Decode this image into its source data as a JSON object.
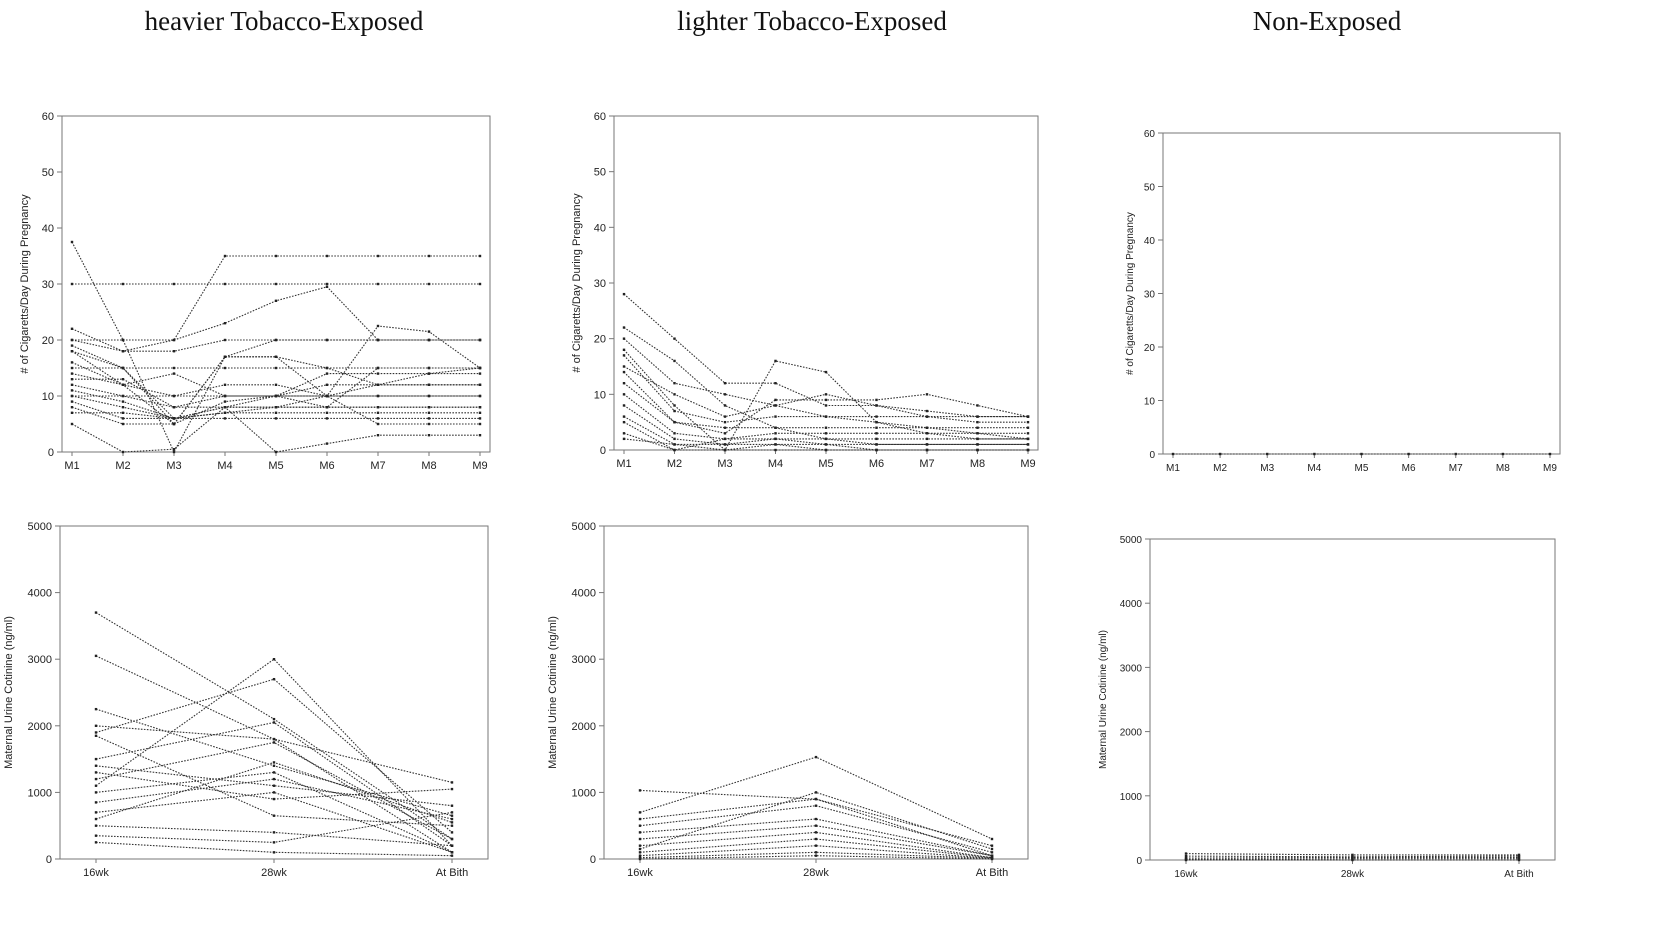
{
  "group_titles": [
    "heavier Tobacco-Exposed",
    "lighter Tobacco-Exposed",
    "Non-Exposed"
  ],
  "colors": {
    "line": "#333333",
    "frame": "#777777",
    "text": "#222222"
  },
  "chart_data": [
    {
      "type": "line",
      "group": "heavier Tobacco-Exposed",
      "ylabel": "# of Cigaretts/Day During Pregnancy",
      "xlabel": "",
      "categories": [
        "M1",
        "M2",
        "M3",
        "M4",
        "M5",
        "M6",
        "M7",
        "M8",
        "M9"
      ],
      "ylim": [
        0,
        60
      ],
      "yticks": [
        0,
        10,
        20,
        30,
        40,
        50,
        60
      ],
      "series": [
        {
          "values": [
            37.5,
            20,
            0,
            17,
            17,
            15,
            12,
            12,
            12
          ]
        },
        {
          "values": [
            30,
            30,
            30,
            30,
            30,
            30,
            30,
            30,
            30
          ]
        },
        {
          "values": [
            20,
            18,
            20,
            35,
            35,
            35,
            35,
            35,
            35
          ]
        },
        {
          "values": [
            20,
            20,
            20,
            23,
            27,
            29.5,
            20,
            20,
            20
          ]
        },
        {
          "values": [
            22,
            18,
            18,
            20,
            20,
            20,
            20,
            20,
            20
          ]
        },
        {
          "values": [
            19,
            15,
            5,
            17,
            17,
            10,
            22.5,
            21.5,
            15
          ]
        },
        {
          "values": [
            18,
            12,
            5,
            17,
            20,
            20,
            20,
            20,
            20
          ]
        },
        {
          "values": [
            15,
            15,
            15,
            15,
            15,
            15,
            15,
            15,
            15
          ]
        },
        {
          "values": [
            14,
            12,
            10,
            12,
            12,
            10,
            10,
            10,
            10
          ]
        },
        {
          "values": [
            12,
            10,
            8,
            10,
            10,
            8,
            15,
            15,
            15
          ]
        },
        {
          "values": [
            10,
            8,
            6,
            8,
            0,
            1.5,
            3,
            3,
            3
          ]
        },
        {
          "values": [
            10,
            10,
            10,
            10,
            10,
            10,
            10,
            10,
            10
          ]
        },
        {
          "values": [
            8,
            5,
            5,
            9,
            10,
            12,
            12,
            12,
            12
          ]
        },
        {
          "values": [
            7,
            7,
            6,
            7,
            7,
            7,
            7,
            7,
            7
          ]
        },
        {
          "values": [
            5,
            0,
            0.5,
            8,
            8,
            8,
            8,
            8,
            8
          ]
        },
        {
          "values": [
            16,
            12,
            14,
            10,
            10,
            14,
            14,
            14,
            14
          ]
        },
        {
          "values": [
            18,
            15,
            6,
            8,
            10,
            10,
            5,
            5,
            5
          ]
        },
        {
          "values": [
            11,
            9,
            6,
            7,
            8,
            10,
            12,
            14,
            15
          ]
        },
        {
          "values": [
            9,
            6,
            6,
            6,
            6,
            6,
            6,
            6,
            6
          ]
        },
        {
          "values": [
            13,
            13,
            8,
            8,
            8,
            8,
            8,
            8,
            8
          ]
        }
      ]
    },
    {
      "type": "line",
      "group": "lighter Tobacco-Exposed",
      "ylabel": "# of Cigaretts/Day During Pregnancy",
      "xlabel": "",
      "categories": [
        "M1",
        "M2",
        "M3",
        "M4",
        "M5",
        "M6",
        "M7",
        "M8",
        "M9"
      ],
      "ylim": [
        0,
        60
      ],
      "yticks": [
        0,
        10,
        20,
        30,
        40,
        50,
        60
      ],
      "series": [
        {
          "values": [
            28,
            20,
            12,
            12,
            8,
            8,
            7,
            6,
            6
          ]
        },
        {
          "values": [
            22,
            16,
            8,
            4,
            2,
            1,
            1,
            1,
            1
          ]
        },
        {
          "values": [
            20,
            12,
            10,
            8,
            6,
            5,
            4,
            3,
            2
          ]
        },
        {
          "values": [
            18,
            8,
            0,
            16,
            14,
            5,
            3,
            2,
            2
          ]
        },
        {
          "values": [
            15,
            10,
            6,
            8,
            10,
            8,
            6,
            5,
            5
          ]
        },
        {
          "values": [
            12,
            5,
            3,
            9,
            9,
            9,
            10,
            8,
            6
          ]
        },
        {
          "values": [
            10,
            3,
            2,
            3,
            3,
            3,
            3,
            3,
            3
          ]
        },
        {
          "values": [
            8,
            2,
            1,
            2,
            2,
            2,
            2,
            2,
            2
          ]
        },
        {
          "values": [
            6,
            1,
            0,
            1,
            1,
            1,
            1,
            1,
            1
          ]
        },
        {
          "values": [
            5,
            0,
            0,
            0,
            0,
            0,
            0,
            0,
            0
          ]
        },
        {
          "values": [
            3,
            0,
            2,
            2,
            1,
            0,
            0,
            0,
            0
          ]
        },
        {
          "values": [
            2,
            1,
            1,
            1,
            0,
            0,
            0,
            0,
            0
          ]
        },
        {
          "values": [
            17,
            7,
            5,
            6,
            6,
            6,
            6,
            6,
            6
          ]
        },
        {
          "values": [
            14,
            5,
            4,
            4,
            4,
            4,
            4,
            4,
            4
          ]
        }
      ]
    },
    {
      "type": "line",
      "group": "Non-Exposed",
      "ylabel": "# of Cigaretts/Day During Pregnancy",
      "xlabel": "",
      "categories": [
        "M1",
        "M2",
        "M3",
        "M4",
        "M5",
        "M6",
        "M7",
        "M8",
        "M9"
      ],
      "ylim": [
        0,
        60
      ],
      "yticks": [
        0,
        10,
        20,
        30,
        40,
        50,
        60
      ],
      "series": [
        {
          "values": [
            0,
            0,
            0,
            0,
            0,
            0,
            0,
            0,
            0
          ]
        }
      ]
    },
    {
      "type": "line",
      "group": "heavier Tobacco-Exposed",
      "ylabel": "Maternal Urine Cotinine (ng/ml)",
      "xlabel": "",
      "categories": [
        "16wk",
        "28wk",
        "At Bith"
      ],
      "ylim": [
        0,
        5000
      ],
      "yticks": [
        0,
        1000,
        2000,
        3000,
        4000,
        5000
      ],
      "series": [
        {
          "values": [
            3700,
            2100,
            300
          ]
        },
        {
          "values": [
            3050,
            1800,
            100
          ]
        },
        {
          "values": [
            1100,
            3000,
            200
          ]
        },
        {
          "values": [
            2250,
            1400,
            650
          ]
        },
        {
          "values": [
            2000,
            1800,
            1150
          ]
        },
        {
          "values": [
            1900,
            2700,
            400
          ]
        },
        {
          "values": [
            1500,
            2050,
            200
          ]
        },
        {
          "values": [
            1400,
            1100,
            800
          ]
        },
        {
          "values": [
            1300,
            900,
            1050
          ]
        },
        {
          "values": [
            1200,
            1750,
            300
          ]
        },
        {
          "values": [
            1000,
            1300,
            100
          ]
        },
        {
          "values": [
            850,
            1200,
            600
          ]
        },
        {
          "values": [
            700,
            1000,
            100
          ]
        },
        {
          "values": [
            600,
            1450,
            550
          ]
        },
        {
          "values": [
            500,
            400,
            200
          ]
        },
        {
          "values": [
            350,
            250,
            700
          ]
        },
        {
          "values": [
            250,
            100,
            50
          ]
        },
        {
          "values": [
            1850,
            650,
            500
          ]
        }
      ]
    },
    {
      "type": "line",
      "group": "lighter Tobacco-Exposed",
      "ylabel": "Maternal Urine Cotinine (ng/ml)",
      "xlabel": "",
      "categories": [
        "16wk",
        "28wk",
        "At Bith"
      ],
      "ylim": [
        0,
        5000
      ],
      "yticks": [
        0,
        1000,
        2000,
        3000,
        4000,
        5000
      ],
      "series": [
        {
          "values": [
            1030,
            900,
            50
          ]
        },
        {
          "values": [
            700,
            1530,
            300
          ]
        },
        {
          "values": [
            600,
            900,
            200
          ]
        },
        {
          "values": [
            500,
            800,
            100
          ]
        },
        {
          "values": [
            400,
            600,
            50
          ]
        },
        {
          "values": [
            300,
            500,
            50
          ]
        },
        {
          "values": [
            200,
            400,
            20
          ]
        },
        {
          "values": [
            100,
            300,
            20
          ]
        },
        {
          "values": [
            50,
            200,
            10
          ]
        },
        {
          "values": [
            20,
            100,
            10
          ]
        },
        {
          "values": [
            0,
            50,
            0
          ]
        },
        {
          "values": [
            150,
            1000,
            150
          ]
        }
      ]
    },
    {
      "type": "line",
      "group": "Non-Exposed",
      "ylabel": "Maternal Urine Cotinine (ng/ml)",
      "xlabel": "",
      "categories": [
        "16wk",
        "28wk",
        "At Bith"
      ],
      "ylim": [
        0,
        5000
      ],
      "yticks": [
        0,
        1000,
        2000,
        3000,
        4000,
        5000
      ],
      "series": [
        {
          "values": [
            100,
            80,
            80
          ]
        },
        {
          "values": [
            60,
            50,
            60
          ]
        },
        {
          "values": [
            30,
            40,
            40
          ]
        },
        {
          "values": [
            10,
            20,
            20
          ]
        },
        {
          "values": [
            0,
            0,
            0
          ]
        }
      ]
    }
  ]
}
